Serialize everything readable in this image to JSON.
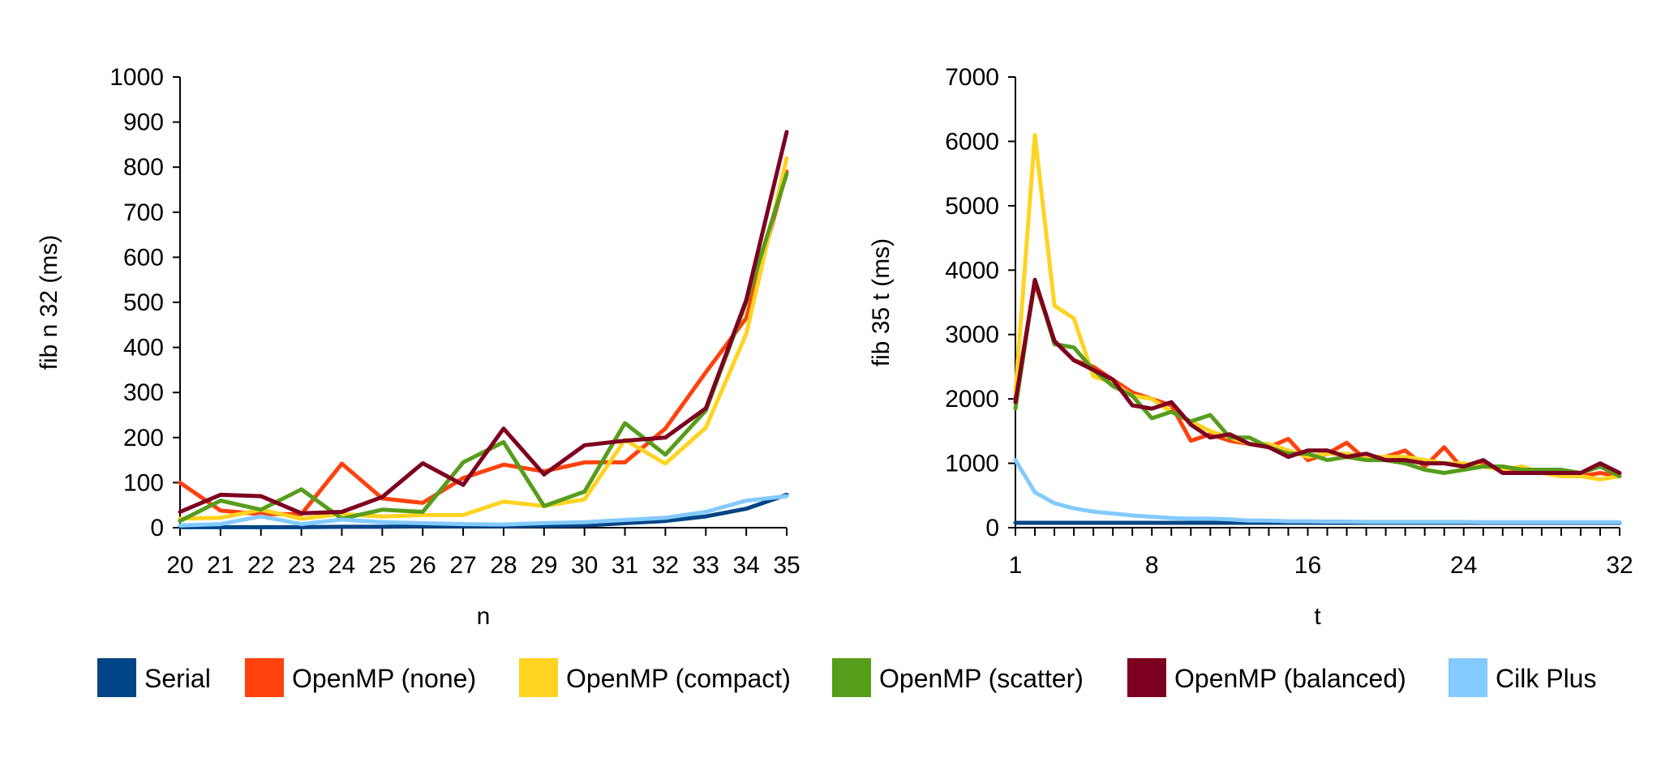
{
  "colors": {
    "serial": "#004586",
    "openmp_none": "#ff420e",
    "openmp_compact": "#ffd320",
    "openmp_scatter": "#579d1c",
    "openmp_balanced": "#7e0021",
    "cilk_plus": "#83caff"
  },
  "legend": [
    {
      "key": "serial",
      "label": "Serial"
    },
    {
      "key": "openmp_none",
      "label": "OpenMP (none)"
    },
    {
      "key": "openmp_compact",
      "label": "OpenMP (compact)"
    },
    {
      "key": "openmp_scatter",
      "label": "OpenMP (scatter)"
    },
    {
      "key": "openmp_balanced",
      "label": "OpenMP (balanced)"
    },
    {
      "key": "cilk_plus",
      "label": "Cilk Plus"
    }
  ],
  "chart_data": [
    {
      "type": "line",
      "xlabel": "n",
      "ylabel": "fib n 32 (ms)",
      "ylim": [
        0,
        1000
      ],
      "yticks": [
        0,
        100,
        200,
        300,
        400,
        500,
        600,
        700,
        800,
        900,
        1000
      ],
      "xlim": [
        20,
        35
      ],
      "xticks": [
        20,
        21,
        22,
        23,
        24,
        25,
        26,
        27,
        28,
        29,
        30,
        31,
        32,
        33,
        34,
        35
      ],
      "grid": false,
      "legend_position": "bottom",
      "x": [
        20,
        21,
        22,
        23,
        24,
        25,
        26,
        27,
        28,
        29,
        30,
        31,
        32,
        33,
        34,
        35
      ],
      "series": [
        {
          "key": "serial",
          "name": "Serial",
          "values": [
            1,
            1,
            1,
            1,
            2,
            2,
            3,
            3,
            3,
            4,
            5,
            10,
            15,
            25,
            42,
            73
          ]
        },
        {
          "key": "openmp_none",
          "name": "OpenMP (none)",
          "values": [
            100,
            38,
            30,
            30,
            142,
            65,
            55,
            110,
            140,
            125,
            145,
            145,
            220,
            345,
            465,
            790
          ]
        },
        {
          "key": "openmp_compact",
          "name": "OpenMP (compact)",
          "values": [
            20,
            22,
            40,
            20,
            30,
            25,
            28,
            28,
            58,
            48,
            63,
            195,
            142,
            222,
            430,
            820
          ]
        },
        {
          "key": "openmp_scatter",
          "name": "OpenMP (scatter)",
          "values": [
            15,
            60,
            40,
            85,
            20,
            40,
            35,
            145,
            190,
            48,
            80,
            232,
            162,
            260,
            500,
            785
          ]
        },
        {
          "key": "openmp_balanced",
          "name": "OpenMP (balanced)",
          "values": [
            35,
            73,
            70,
            32,
            35,
            68,
            143,
            95,
            220,
            118,
            183,
            193,
            200,
            265,
            505,
            878
          ]
        },
        {
          "key": "cilk_plus",
          "name": "Cilk Plus",
          "values": [
            5,
            8,
            25,
            8,
            18,
            12,
            10,
            8,
            7,
            10,
            12,
            17,
            22,
            35,
            60,
            70
          ]
        }
      ]
    },
    {
      "type": "line",
      "xlabel": "t",
      "ylabel": "fib 35 t (ms)",
      "ylim": [
        0,
        7000
      ],
      "yticks": [
        0,
        1000,
        2000,
        3000,
        4000,
        5000,
        6000,
        7000
      ],
      "xlim": [
        1,
        32
      ],
      "xticks_labeled": [
        1,
        8,
        16,
        24,
        32
      ],
      "grid": false,
      "legend_position": "bottom",
      "x": [
        1,
        2,
        3,
        4,
        5,
        6,
        7,
        8,
        9,
        10,
        11,
        12,
        13,
        14,
        15,
        16,
        17,
        18,
        19,
        20,
        21,
        22,
        23,
        24,
        25,
        26,
        27,
        28,
        29,
        30,
        31,
        32
      ],
      "series": [
        {
          "key": "serial",
          "name": "Serial",
          "values": [
            75,
            75,
            75,
            75,
            75,
            75,
            75,
            75,
            75,
            75,
            75,
            75,
            75,
            75,
            75,
            75,
            75,
            75,
            75,
            75,
            75,
            75,
            75,
            75,
            75,
            75,
            75,
            75,
            75,
            75,
            75,
            75
          ]
        },
        {
          "key": "openmp_none",
          "name": "OpenMP (none)",
          "values": [
            2000,
            3800,
            2900,
            2600,
            2500,
            2300,
            2100,
            2000,
            1900,
            1350,
            1450,
            1350,
            1300,
            1250,
            1380,
            1050,
            1150,
            1320,
            1050,
            1100,
            1200,
            950,
            1250,
            900,
            1000,
            900,
            850,
            900,
            850,
            800,
            850,
            800
          ]
        },
        {
          "key": "openmp_compact",
          "name": "OpenMP (compact)",
          "values": [
            2100,
            6100,
            3450,
            3250,
            2350,
            2250,
            2050,
            2000,
            1800,
            1650,
            1500,
            1400,
            1300,
            1300,
            1200,
            1100,
            1150,
            1150,
            1100,
            1100,
            1100,
            1050,
            1000,
            1000,
            950,
            900,
            950,
            850,
            800,
            800,
            750,
            800
          ]
        },
        {
          "key": "openmp_scatter",
          "name": "OpenMP (scatter)",
          "values": [
            1850,
            3850,
            2850,
            2800,
            2450,
            2200,
            2050,
            1700,
            1800,
            1650,
            1750,
            1400,
            1400,
            1250,
            1150,
            1150,
            1050,
            1100,
            1050,
            1050,
            1000,
            900,
            850,
            900,
            950,
            950,
            900,
            900,
            900,
            850,
            950,
            800
          ]
        },
        {
          "key": "openmp_balanced",
          "name": "OpenMP (balanced)",
          "values": [
            1950,
            3850,
            2900,
            2600,
            2450,
            2300,
            1900,
            1850,
            1950,
            1600,
            1400,
            1450,
            1300,
            1250,
            1100,
            1200,
            1200,
            1100,
            1150,
            1050,
            1050,
            1000,
            1000,
            950,
            1050,
            850,
            850,
            850,
            850,
            850,
            1000,
            850
          ]
        },
        {
          "key": "cilk_plus",
          "name": "Cilk Plus",
          "values": [
            1050,
            550,
            380,
            300,
            250,
            220,
            190,
            170,
            150,
            140,
            140,
            130,
            110,
            110,
            100,
            100,
            95,
            95,
            90,
            90,
            90,
            90,
            90,
            90,
            85,
            85,
            85,
            85,
            85,
            85,
            85,
            85
          ]
        }
      ]
    }
  ]
}
